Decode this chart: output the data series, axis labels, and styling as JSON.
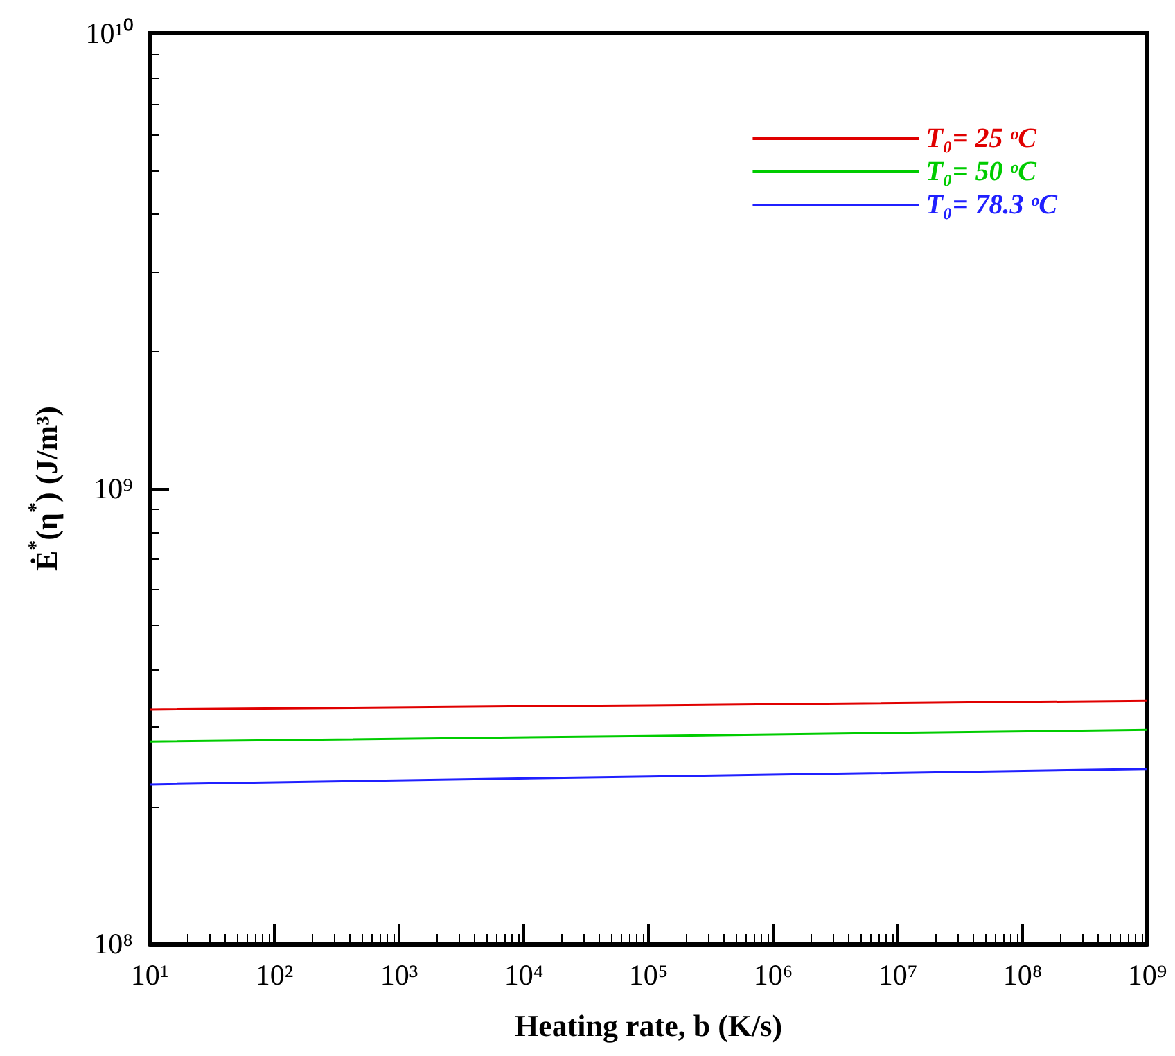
{
  "chart_data": {
    "type": "line",
    "xlabel": "Heating rate, b (K/s)",
    "ylabel": "Ė$^{*}$(η$^{*}$) (J/m³)",
    "x": [
      10,
      100000,
      1000000000
    ],
    "series": [
      {
        "name": "T₀= 25 ᵒC",
        "color": "#e00000",
        "values": [
          327000000,
          334000000,
          342000000
        ]
      },
      {
        "name": "T₀= 50 ᵒC",
        "color": "#00cc00",
        "values": [
          278000000,
          286000000,
          295000000
        ]
      },
      {
        "name": "T₀= 78.3 ᵒC",
        "color": "#2020ff",
        "values": [
          224000000,
          233000000,
          242000000
        ]
      }
    ],
    "log": "xy",
    "xlim": [
      10,
      1000000000
    ],
    "ylim": [
      100000000,
      10000000000
    ],
    "xticks": [
      {
        "value": 10,
        "label": "10¹"
      },
      {
        "value": 100,
        "label": "10²"
      },
      {
        "value": 1000,
        "label": "10³"
      },
      {
        "value": 10000,
        "label": "10⁴"
      },
      {
        "value": 100000,
        "label": "10⁵"
      },
      {
        "value": 1000000,
        "label": "10⁶"
      },
      {
        "value": 10000000,
        "label": "10⁷"
      },
      {
        "value": 100000000,
        "label": "10⁸"
      },
      {
        "value": 1000000000,
        "label": "10⁹"
      }
    ],
    "yticks": [
      {
        "value": 100000000,
        "label": "10⁸"
      },
      {
        "value": 1000000000,
        "label": "10⁹"
      },
      {
        "value": 10000000000,
        "label": "10¹⁰"
      }
    ],
    "legend": "top right",
    "grid": false,
    "marker": "none",
    "line_style": "solid"
  }
}
